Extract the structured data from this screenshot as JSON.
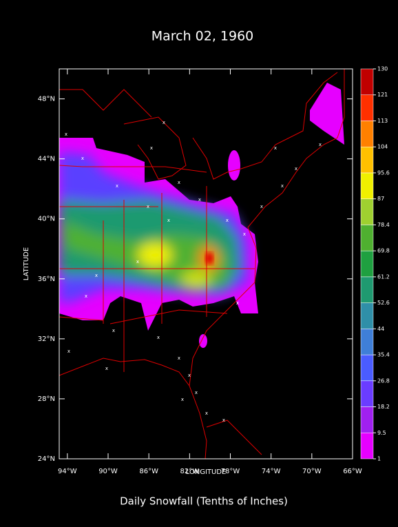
{
  "title": "March 02, 1960",
  "x_axis": {
    "label": "LONGITUDE",
    "lim": [
      -94.8,
      -66
    ],
    "ticks": [
      {
        "value": -94,
        "label": "94°W"
      },
      {
        "value": -90,
        "label": "90°W"
      },
      {
        "value": -86,
        "label": "86°W"
      },
      {
        "value": -82,
        "label": "82°W"
      },
      {
        "value": -78,
        "label": "78°W"
      },
      {
        "value": -74,
        "label": "74°W"
      },
      {
        "value": -70,
        "label": "70°W"
      },
      {
        "value": -66,
        "label": "66°W"
      }
    ]
  },
  "y_axis": {
    "label": "LATITUDE",
    "lim": [
      24,
      50
    ],
    "ticks": [
      {
        "value": 24,
        "label": "24°N"
      },
      {
        "value": 28,
        "label": "28°N"
      },
      {
        "value": 32,
        "label": "32°N"
      },
      {
        "value": 36,
        "label": "36°N"
      },
      {
        "value": 40,
        "label": "40°N"
      },
      {
        "value": 44,
        "label": "44°N"
      },
      {
        "value": 48,
        "label": "48°N"
      }
    ]
  },
  "colorbar": {
    "levels": [
      1,
      9.5,
      18.2,
      26.8,
      35.4,
      44,
      52.6,
      61.2,
      69.8,
      78.4,
      87,
      95.6,
      104,
      113,
      121,
      130
    ],
    "colors": [
      "#e600ff",
      "#a020f0",
      "#6a3cff",
      "#4a5cff",
      "#3f7fd8",
      "#2f8fa8",
      "#1f9a70",
      "#1fa040",
      "#4fb030",
      "#9fd030",
      "#f0f000",
      "#ffc000",
      "#ff8000",
      "#ff3000",
      "#c00000"
    ]
  },
  "caption": "Daily Snowfall (Tenths of Inches)"
}
